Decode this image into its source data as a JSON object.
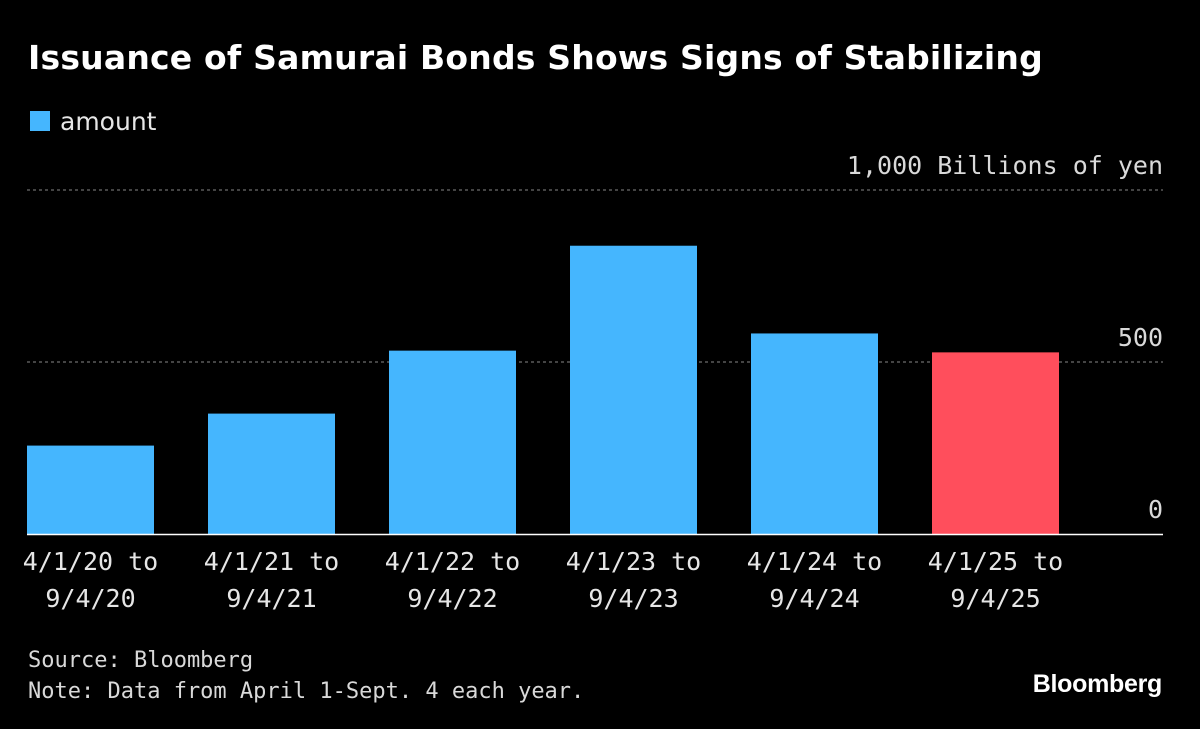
{
  "chart_data": {
    "type": "bar",
    "title": "Issuance of Samurai Bonds Shows Signs of Stabilizing",
    "legend": [
      {
        "name": "amount",
        "color": "#45b6fe"
      }
    ],
    "categories": [
      [
        "4/1/20 to",
        "9/4/20"
      ],
      [
        "4/1/21 to",
        "9/4/21"
      ],
      [
        "4/1/22 to",
        "9/4/22"
      ],
      [
        "4/1/23 to",
        "9/4/23"
      ],
      [
        "4/1/24 to",
        "9/4/24"
      ],
      [
        "4/1/25 to",
        "9/4/25"
      ]
    ],
    "series": [
      {
        "name": "amount",
        "values": [
          257,
          350,
          533,
          838,
          583,
          528
        ]
      }
    ],
    "bar_colors": [
      "#45b6fe",
      "#45b6fe",
      "#45b6fe",
      "#45b6fe",
      "#45b6fe",
      "#ff4e5c"
    ],
    "ylabel": "Billions of yen",
    "ylim": [
      0,
      1000
    ],
    "yticks": [
      0,
      500,
      1000
    ],
    "ytick_labels": [
      "0",
      "500",
      "1,000 Billions of yen"
    ],
    "grid": true,
    "legend_position": "top-left"
  },
  "footer": {
    "source": "Source: Bloomberg",
    "note": "Note: Data from April 1-Sept. 4 each year.",
    "brand": "Bloomberg"
  }
}
